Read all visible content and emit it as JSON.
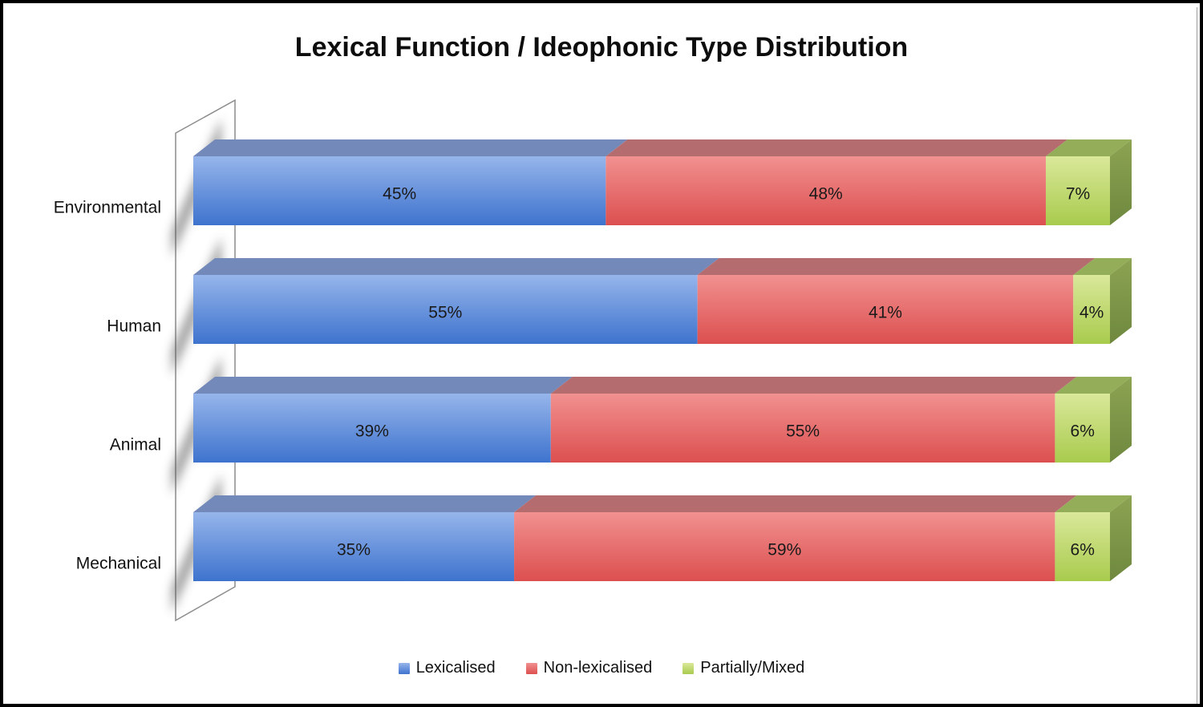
{
  "chart_data": {
    "type": "bar",
    "orientation": "horizontal",
    "stacked": true,
    "effect": "3d-extruded",
    "title": "Lexical Function / Ideophonic Type Distribution",
    "categories": [
      "Environmental",
      "Human",
      "Animal",
      "Mechanical"
    ],
    "series": [
      {
        "name": "Lexicalised",
        "values": [
          45,
          55,
          39,
          35
        ],
        "color": "#4E80D4",
        "front_gradient": [
          "#96B5EB",
          "#3E73CE"
        ],
        "top_color": "#7389BA"
      },
      {
        "name": "Non-lexicalised",
        "values": [
          48,
          41,
          55,
          59
        ],
        "color": "#DC5050",
        "front_gradient": [
          "#F19190",
          "#DC4F4F"
        ],
        "top_color": "#B46C6F"
      },
      {
        "name": "Partially/Mixed",
        "values": [
          7,
          4,
          6,
          6
        ],
        "color": "#A9CC4E",
        "front_gradient": [
          "#DAE89A",
          "#A8CB4D"
        ],
        "top_color": "#94AD59",
        "side_gradient": [
          "#8CA352",
          "#6E883E"
        ]
      }
    ],
    "value_suffix": "%",
    "xlim": [
      0,
      100
    ],
    "value_labels": "inside",
    "legend_position": "bottom",
    "background": "#FFFFFF",
    "frame_color": "#000000",
    "wall_line_color": "#8C8C8C"
  }
}
